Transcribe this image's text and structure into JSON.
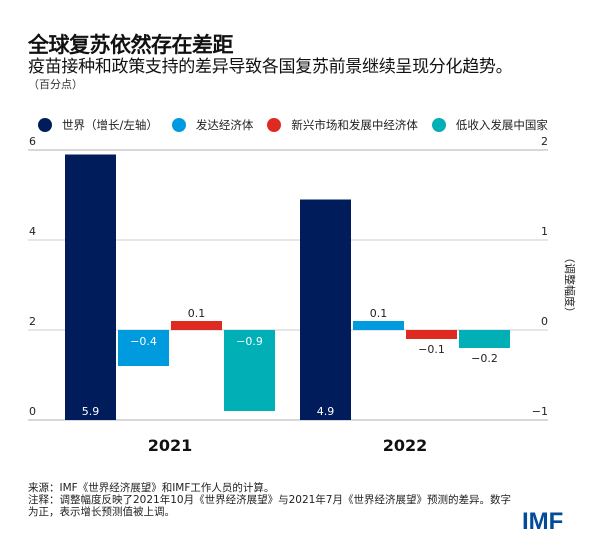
{
  "header": {
    "title": "全球复苏依然存在差距",
    "subtitle": "疫苗接种和政策支持的差异导致各国复苏前景继续呈现分化趋势。",
    "unit": "（百分点）"
  },
  "colors": {
    "world": "#001c5a",
    "advanced": "#009ade",
    "emerging": "#de2a21",
    "low_income": "#00b0b6",
    "gridline": "#cccccc",
    "logo": "#004c97"
  },
  "chart_data": {
    "type": "bar",
    "title": "全球复苏依然存在差距",
    "subtitle": "疫苗接种和政策支持的差异导致各国复苏前景继续呈现分化趋势。",
    "categories": [
      "2021",
      "2022"
    ],
    "ylabel_left": "（百分点）",
    "ylabel_right": "（调整幅度）",
    "left_axis": {
      "ylim": [
        0,
        6
      ],
      "ticks": [
        "0",
        "2",
        "4",
        "6"
      ]
    },
    "right_axis": {
      "ylim": [
        -1,
        2
      ],
      "ticks": [
        "-1",
        "0",
        "1",
        "2"
      ]
    },
    "grid": true,
    "legend_position": "top",
    "series": [
      {
        "name": "世界（增长/左轴）",
        "key": "world",
        "axis": "left",
        "values": [
          5.9,
          4.9
        ],
        "labels": [
          "5.9",
          "4.9"
        ]
      },
      {
        "name": "发达经济体",
        "key": "advanced",
        "axis": "right",
        "values": [
          -0.4,
          0.1
        ],
        "labels": [
          "−0.4",
          "0.1"
        ]
      },
      {
        "name": "新兴市场和发展中经济体",
        "key": "emerging",
        "axis": "right",
        "values": [
          0.1,
          -0.1
        ],
        "labels": [
          "0.1",
          "−0.1"
        ]
      },
      {
        "name": "低收入发展中国家",
        "key": "low_income",
        "axis": "right",
        "values": [
          -0.9,
          -0.2
        ],
        "labels": [
          "−0.9",
          "−0.2"
        ]
      }
    ]
  },
  "footer": {
    "source": "来源：IMF《世界经济展望》和IMF工作人员的计算。",
    "note_line1": "注释：调整幅度反映了2021年10月《世界经济展望》与2021年7月《世界经济展望》预测的差异。数字",
    "note_line2": "为正，表示增长预测值被上调。",
    "logo": "IMF"
  }
}
